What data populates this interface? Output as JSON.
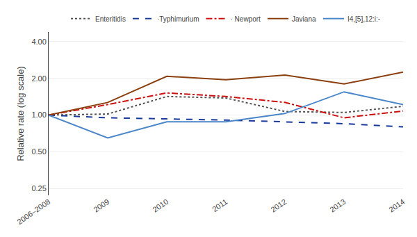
{
  "chart_data": {
    "type": "line",
    "categories": [
      "2006–2008",
      "2009",
      "2010",
      "2011",
      "2012",
      "2013",
      "2014"
    ],
    "series": [
      {
        "name": "Enteritidis",
        "color": "#555555",
        "line_style": "dotted",
        "values": [
          1.0,
          1.02,
          1.42,
          1.38,
          1.07,
          1.05,
          1.18
        ]
      },
      {
        "name": "·Typhimurium",
        "color": "#1a3a9c",
        "line_style": "dashed",
        "values": [
          1.0,
          0.95,
          0.93,
          0.91,
          0.88,
          0.85,
          0.8
        ]
      },
      {
        "name": "· Newport",
        "color": "#cc1111",
        "line_style": "dashdot",
        "values": [
          1.0,
          1.22,
          1.52,
          1.42,
          1.27,
          0.95,
          1.08
        ]
      },
      {
        "name": "Javiana",
        "color": "#8B4010",
        "line_style": "solid",
        "values": [
          1.0,
          1.27,
          2.08,
          1.95,
          2.13,
          1.8,
          2.25
        ]
      },
      {
        "name": "I4,[5],12:i:-",
        "color": "#4a86c8",
        "line_style": "solid",
        "values": [
          1.0,
          0.65,
          0.88,
          0.88,
          1.03,
          1.55,
          1.22
        ]
      }
    ],
    "ylabel": "Relative rate (log scale)",
    "log": "y",
    "ylim": [
      0.22,
      4.8
    ],
    "yticks": [
      0.25,
      {
        "value": 0.5,
        "label": "0.50"
      },
      {
        "value": 1.0,
        "label": "1.00"
      },
      {
        "value": 2.0,
        "label": "2.00"
      },
      {
        "value": 4.0,
        "label": "4.00"
      }
    ],
    "grid": true,
    "legend": "upper center"
  }
}
